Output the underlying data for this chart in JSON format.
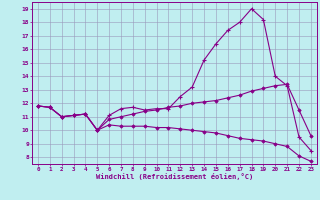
{
  "xlabel": "Windchill (Refroidissement éolien,°C)",
  "xlim": [
    -0.5,
    23.5
  ],
  "ylim": [
    7.5,
    19.5
  ],
  "yticks": [
    8,
    9,
    10,
    11,
    12,
    13,
    14,
    15,
    16,
    17,
    18,
    19
  ],
  "xticks": [
    0,
    1,
    2,
    3,
    4,
    5,
    6,
    7,
    8,
    9,
    10,
    11,
    12,
    13,
    14,
    15,
    16,
    17,
    18,
    19,
    20,
    21,
    22,
    23
  ],
  "background_color": "#c0eef0",
  "grid_color": "#9999bb",
  "line_color": "#880088",
  "line1_x": [
    0,
    1,
    2,
    3,
    4,
    5,
    6,
    7,
    8,
    9,
    10,
    11,
    12,
    13,
    14,
    15,
    16,
    17,
    18,
    19,
    20,
    21,
    22,
    23
  ],
  "line1_y": [
    11.8,
    11.7,
    11.0,
    11.1,
    11.2,
    10.0,
    11.1,
    11.6,
    11.7,
    11.5,
    11.6,
    11.6,
    12.5,
    13.2,
    15.2,
    16.4,
    17.4,
    18.0,
    19.0,
    18.2,
    14.0,
    13.3,
    9.5,
    8.5
  ],
  "line2_x": [
    0,
    1,
    2,
    3,
    4,
    5,
    6,
    7,
    8,
    9,
    10,
    11,
    12,
    13,
    14,
    15,
    16,
    17,
    18,
    19,
    20,
    21,
    22,
    23
  ],
  "line2_y": [
    11.8,
    11.7,
    11.0,
    11.1,
    11.2,
    10.0,
    10.8,
    11.0,
    11.2,
    11.4,
    11.5,
    11.7,
    11.8,
    12.0,
    12.1,
    12.2,
    12.4,
    12.6,
    12.9,
    13.1,
    13.3,
    13.4,
    11.5,
    9.6
  ],
  "line3_x": [
    0,
    1,
    2,
    3,
    4,
    5,
    6,
    7,
    8,
    9,
    10,
    11,
    12,
    13,
    14,
    15,
    16,
    17,
    18,
    19,
    20,
    21,
    22,
    23
  ],
  "line3_y": [
    11.8,
    11.7,
    11.0,
    11.1,
    11.2,
    10.0,
    10.4,
    10.3,
    10.3,
    10.3,
    10.2,
    10.2,
    10.1,
    10.0,
    9.9,
    9.8,
    9.6,
    9.4,
    9.3,
    9.2,
    9.0,
    8.8,
    8.1,
    7.7
  ]
}
